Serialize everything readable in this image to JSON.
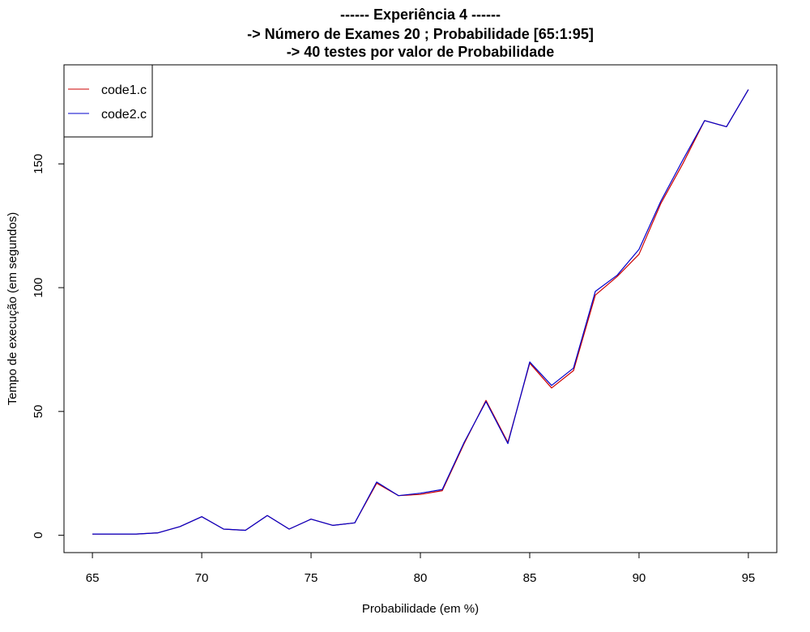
{
  "chart_data": {
    "type": "line",
    "title_lines": [
      "------ Experiência 4 ------",
      "-> Número de Exames 20 ; Probabilidade [65:1:95]",
      "-> 40 testes por valor de Probabilidade"
    ],
    "xlabel": "Probabilidade (em %)",
    "ylabel": "Tempo de execução (em segundos)",
    "xlim": [
      63.7,
      96.3
    ],
    "ylim": [
      -7,
      190
    ],
    "xticks": [
      65,
      70,
      75,
      80,
      85,
      90,
      95
    ],
    "yticks": [
      0,
      50,
      100,
      150
    ],
    "legend_position": "top-left",
    "x": [
      65,
      66,
      67,
      68,
      69,
      70,
      71,
      72,
      73,
      74,
      75,
      76,
      77,
      78,
      79,
      80,
      81,
      82,
      83,
      84,
      85,
      86,
      87,
      88,
      89,
      90,
      91,
      92,
      93,
      94,
      95
    ],
    "series": [
      {
        "name": "code1.c",
        "color": "#cc0000",
        "values": [
          0.5,
          0.5,
          0.5,
          1,
          3.5,
          7.5,
          2.5,
          2,
          8,
          2.5,
          6.5,
          4,
          5,
          21,
          16,
          16.5,
          18,
          37,
          54.5,
          37.5,
          69.5,
          59.5,
          66.5,
          97,
          104.5,
          113.5,
          134,
          150,
          167.5,
          165,
          180
        ]
      },
      {
        "name": "code2.c",
        "color": "#0000cc",
        "values": [
          0.5,
          0.5,
          0.5,
          1,
          3.5,
          7.5,
          2.5,
          2,
          8,
          2.5,
          6.5,
          4,
          5,
          21.5,
          16,
          17,
          18.5,
          37.5,
          54,
          37,
          70,
          60.5,
          67.5,
          98.5,
          105,
          115.5,
          135,
          151.5,
          167.5,
          165,
          180
        ]
      }
    ]
  }
}
